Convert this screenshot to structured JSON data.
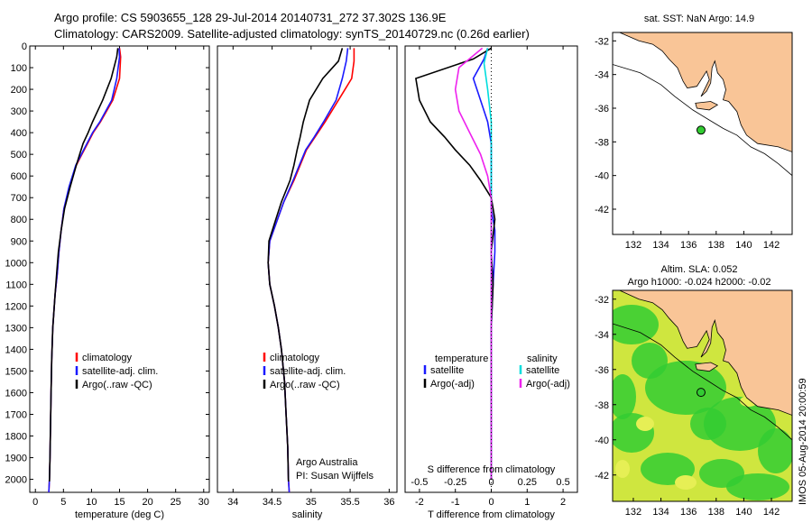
{
  "header": {
    "title_line1": "Argo profile: CS 5903655_128 29-Jul-2014 20140731_272 37.302S 136.9E",
    "title_line2": "Climatology: CARS2009. Satellite-adjusted climatology: synTS_20140729.nc (0.26d earlier)"
  },
  "map_top": {
    "title": "sat. SST: NaN Argo: 14.9",
    "xticks": [
      "132",
      "134",
      "136",
      "138",
      "140",
      "142"
    ],
    "yticks": [
      "-32",
      "-34",
      "-36",
      "-38",
      "-40",
      "-42"
    ],
    "argo_lon": 136.9,
    "argo_lat": -37.302,
    "colors": {
      "land": "#f9c597",
      "sea": "#ffffff",
      "marker": "#33cc33"
    }
  },
  "map_bottom": {
    "title_line1": "Altim. SLA: 0.052",
    "title_line2": "Argo h1000: -0.024 h2000: -0.02",
    "xticks": [
      "132",
      "134",
      "136",
      "138",
      "140",
      "142"
    ],
    "yticks": [
      "-32",
      "-34",
      "-36",
      "-38",
      "-40",
      "-42"
    ],
    "colors": {
      "land": "#f9c597",
      "field_low": "#33cc33",
      "field_high": "#cfe63f"
    }
  },
  "side_stamp": "IMOS 05-Aug-2014 20:00:59",
  "chart_data": [
    {
      "type": "line",
      "id": "temperature",
      "xlabel": "temperature (deg C)",
      "ylabel": "",
      "xlim": [
        -1,
        31
      ],
      "ylim": [
        2060,
        0
      ],
      "xticks": [
        "0",
        "5",
        "10",
        "15",
        "20",
        "25",
        "30"
      ],
      "yticks": [
        "0",
        "100",
        "200",
        "300",
        "400",
        "500",
        "600",
        "700",
        "800",
        "900",
        "1000",
        "1100",
        "1200",
        "1300",
        "1400",
        "1500",
        "1600",
        "1700",
        "1800",
        "1900",
        "2000"
      ],
      "legend": [
        "climatology",
        "satellite-adj. clim.",
        "Argo(..raw -QC)"
      ],
      "series": [
        {
          "name": "climatology",
          "color": "#ff0000",
          "x": [
            15.0,
            15.2,
            15.0,
            13.8,
            11.6,
            10.3,
            9.3,
            8.3,
            7.3,
            6.1,
            5.1,
            4.6,
            4.2,
            3.9,
            3.5,
            3.1,
            2.9,
            2.8,
            2.7,
            2.6,
            2.5,
            2.4
          ],
          "y": [
            10,
            50,
            150,
            250,
            350,
            400,
            450,
            500,
            550,
            650,
            750,
            850,
            950,
            1050,
            1150,
            1300,
            1450,
            1600,
            1750,
            1900,
            2000,
            2060
          ]
        },
        {
          "name": "satellite-adj. clim.",
          "color": "#1a1aff",
          "x": [
            14.9,
            15.0,
            14.5,
            13.6,
            11.5,
            10.2,
            9.2,
            8.2,
            7.2,
            6.0,
            5.1,
            4.6,
            4.2,
            3.9,
            3.5,
            3.1,
            2.9,
            2.8,
            2.7,
            2.6,
            2.5,
            2.4
          ],
          "y": [
            10,
            50,
            150,
            250,
            350,
            400,
            450,
            500,
            550,
            650,
            750,
            850,
            950,
            1050,
            1150,
            1300,
            1450,
            1600,
            1750,
            1900,
            2000,
            2060
          ]
        },
        {
          "name": "Argo(..raw -QC)",
          "color": "#000000",
          "x": [
            14.7,
            14.5,
            13.5,
            12.0,
            10.2,
            9.4,
            8.5,
            7.9,
            7.3,
            6.2,
            5.2,
            4.6,
            4.1,
            3.8,
            3.5,
            3.1,
            2.9,
            2.8,
            2.7,
            2.6,
            2.5
          ],
          "y": [
            10,
            50,
            150,
            250,
            350,
            400,
            450,
            500,
            550,
            650,
            750,
            850,
            950,
            1050,
            1150,
            1300,
            1450,
            1600,
            1750,
            1900,
            2010
          ]
        }
      ]
    },
    {
      "type": "line",
      "id": "salinity",
      "xlabel": "salinity",
      "ylabel": "",
      "xlim": [
        33.8,
        36.1
      ],
      "ylim": [
        2060,
        0
      ],
      "xticks": [
        "34",
        "34.5",
        "35",
        "35.5",
        "36"
      ],
      "legend": [
        "climatology",
        "satellite-adj. clim.",
        "Argo(..raw -QC)"
      ],
      "annotation": [
        "Argo Australia",
        "PI: Susan Wijffels"
      ],
      "series": [
        {
          "name": "climatology",
          "color": "#ff0000",
          "x": [
            35.55,
            35.55,
            35.52,
            35.35,
            35.18,
            35.05,
            34.94,
            34.86,
            34.78,
            34.65,
            34.55,
            34.47,
            34.45,
            34.47,
            34.53,
            34.58,
            34.62,
            34.66,
            34.68,
            34.7,
            34.71,
            34.72
          ],
          "y": [
            10,
            70,
            150,
            250,
            350,
            420,
            480,
            550,
            620,
            720,
            820,
            900,
            1000,
            1100,
            1200,
            1300,
            1400,
            1550,
            1700,
            1850,
            2000,
            2060
          ]
        },
        {
          "name": "satellite-adj. clim.",
          "color": "#1a1aff",
          "x": [
            35.47,
            35.45,
            35.4,
            35.32,
            35.16,
            35.04,
            34.93,
            34.85,
            34.77,
            34.65,
            34.55,
            34.47,
            34.45,
            34.47,
            34.53,
            34.58,
            34.62,
            34.66,
            34.68,
            34.7,
            34.71,
            34.72
          ],
          "y": [
            10,
            70,
            150,
            250,
            350,
            420,
            480,
            550,
            620,
            720,
            820,
            900,
            1000,
            1100,
            1200,
            1300,
            1400,
            1550,
            1700,
            1850,
            2000,
            2060
          ]
        },
        {
          "name": "Argo(..raw -QC)",
          "color": "#000000",
          "x": [
            35.4,
            35.35,
            35.15,
            34.98,
            34.9,
            34.86,
            34.82,
            34.78,
            34.73,
            34.62,
            34.53,
            34.46,
            34.45,
            34.47,
            34.53,
            34.58,
            34.62,
            34.66,
            34.68,
            34.7,
            34.71
          ],
          "y": [
            10,
            70,
            150,
            250,
            350,
            420,
            480,
            550,
            620,
            720,
            820,
            900,
            1000,
            1100,
            1200,
            1300,
            1400,
            1550,
            1700,
            1850,
            2010
          ]
        }
      ]
    },
    {
      "type": "line",
      "id": "difference",
      "xlabel": "T difference from climatology",
      "xlabel_top": "S difference from climatology",
      "xlim": [
        -2.4,
        2.4
      ],
      "ylim": [
        2060,
        0
      ],
      "xticks": [
        "-2",
        "-1",
        "0",
        "1",
        "2"
      ],
      "xticks_top": [
        "-0.5",
        "-0.25",
        "0",
        "0.25",
        "0.5"
      ],
      "legend": {
        "temperature_header": "temperature",
        "salinity_header": "salinity",
        "t_sat": "satellite",
        "t_argo": "Argo(-adj)",
        "s_sat": "satellite",
        "s_argo": "Argo(-adj)"
      },
      "series": [
        {
          "name": "temperature satellite",
          "color": "#1a1aff",
          "x": [
            -0.1,
            -0.2,
            -0.5,
            -0.3,
            -0.1,
            0.0,
            0.0,
            0.0,
            0.0,
            0.1,
            0.1,
            0.05,
            0.0,
            0.0,
            0.0,
            0.0,
            0.0
          ],
          "y": [
            10,
            60,
            150,
            250,
            350,
            450,
            550,
            650,
            750,
            850,
            950,
            1100,
            1300,
            1500,
            1700,
            1900,
            2000
          ]
        },
        {
          "name": "temperature Argo(-adj)",
          "color": "#000000",
          "x": [
            0.0,
            -0.5,
            -2.1,
            -2.0,
            -1.7,
            -1.3,
            -1.0,
            -0.6,
            -0.3,
            0.0,
            0.1,
            0.0,
            0.05,
            0.0,
            0.0,
            0.0,
            0.0
          ],
          "y": [
            10,
            60,
            150,
            250,
            350,
            420,
            480,
            550,
            620,
            700,
            800,
            950,
            1100,
            1300,
            1500,
            1700,
            2000
          ]
        },
        {
          "name": "salinity satellite",
          "color": "#00dddd",
          "x": [
            -0.1,
            -0.2,
            -0.1,
            0.0,
            0.0,
            0.0,
            0.0,
            0.0,
            0.0,
            0.0,
            0.0,
            0.0,
            0.0
          ],
          "y": [
            10,
            80,
            200,
            350,
            500,
            650,
            800,
            1000,
            1200,
            1400,
            1600,
            1800,
            2000
          ]
        },
        {
          "name": "salinity Argo(-adj)",
          "color": "#ee22ee",
          "x": [
            -0.25,
            -0.9,
            -1.0,
            -0.9,
            -0.6,
            -0.3,
            -0.1,
            0.0,
            0.0,
            0.0,
            0.0,
            0.0,
            0.0
          ],
          "y": [
            10,
            100,
            200,
            300,
            400,
            500,
            600,
            700,
            850,
            1000,
            1200,
            1500,
            2000
          ]
        }
      ]
    }
  ]
}
